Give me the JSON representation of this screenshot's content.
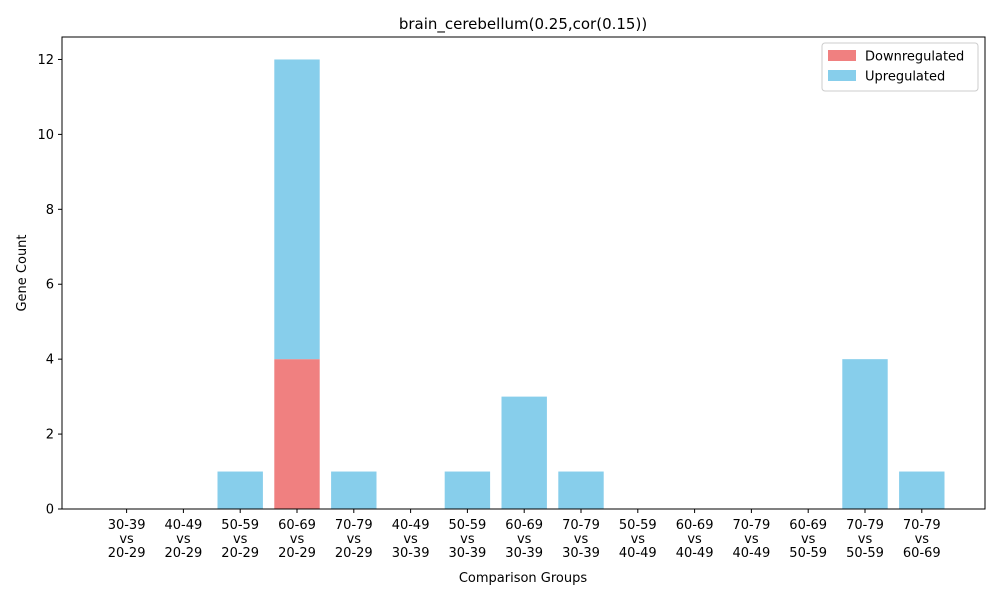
{
  "chart_data": {
    "type": "bar",
    "stacked": true,
    "title": "brain_cerebellum(0.25,cor(0.15))",
    "xlabel": "Comparison Groups",
    "ylabel": "Gene Count",
    "ylim": [
      0,
      12.6
    ],
    "yticks": [
      "0",
      "2",
      "4",
      "6",
      "8",
      "10",
      "12"
    ],
    "grid": false,
    "legend_position": "top-right",
    "categories": [
      [
        "30-39",
        "vs",
        "20-29"
      ],
      [
        "40-49",
        "vs",
        "20-29"
      ],
      [
        "50-59",
        "vs",
        "20-29"
      ],
      [
        "60-69",
        "vs",
        "20-29"
      ],
      [
        "70-79",
        "vs",
        "20-29"
      ],
      [
        "40-49",
        "vs",
        "30-39"
      ],
      [
        "50-59",
        "vs",
        "30-39"
      ],
      [
        "60-69",
        "vs",
        "30-39"
      ],
      [
        "70-79",
        "vs",
        "30-39"
      ],
      [
        "50-59",
        "vs",
        "40-49"
      ],
      [
        "60-69",
        "vs",
        "40-49"
      ],
      [
        "70-79",
        "vs",
        "40-49"
      ],
      [
        "60-69",
        "vs",
        "50-59"
      ],
      [
        "70-79",
        "vs",
        "50-59"
      ],
      [
        "70-79",
        "vs",
        "60-69"
      ]
    ],
    "series": [
      {
        "name": "Downregulated",
        "color": "#f08080",
        "values": [
          0,
          0,
          0,
          4,
          0,
          0,
          0,
          0,
          0,
          0,
          0,
          0,
          0,
          0,
          0
        ]
      },
      {
        "name": "Upregulated",
        "color": "#87ceeb",
        "values": [
          0,
          0,
          1,
          8,
          1,
          0,
          1,
          3,
          1,
          0,
          0,
          0,
          0,
          4,
          1
        ]
      }
    ]
  }
}
